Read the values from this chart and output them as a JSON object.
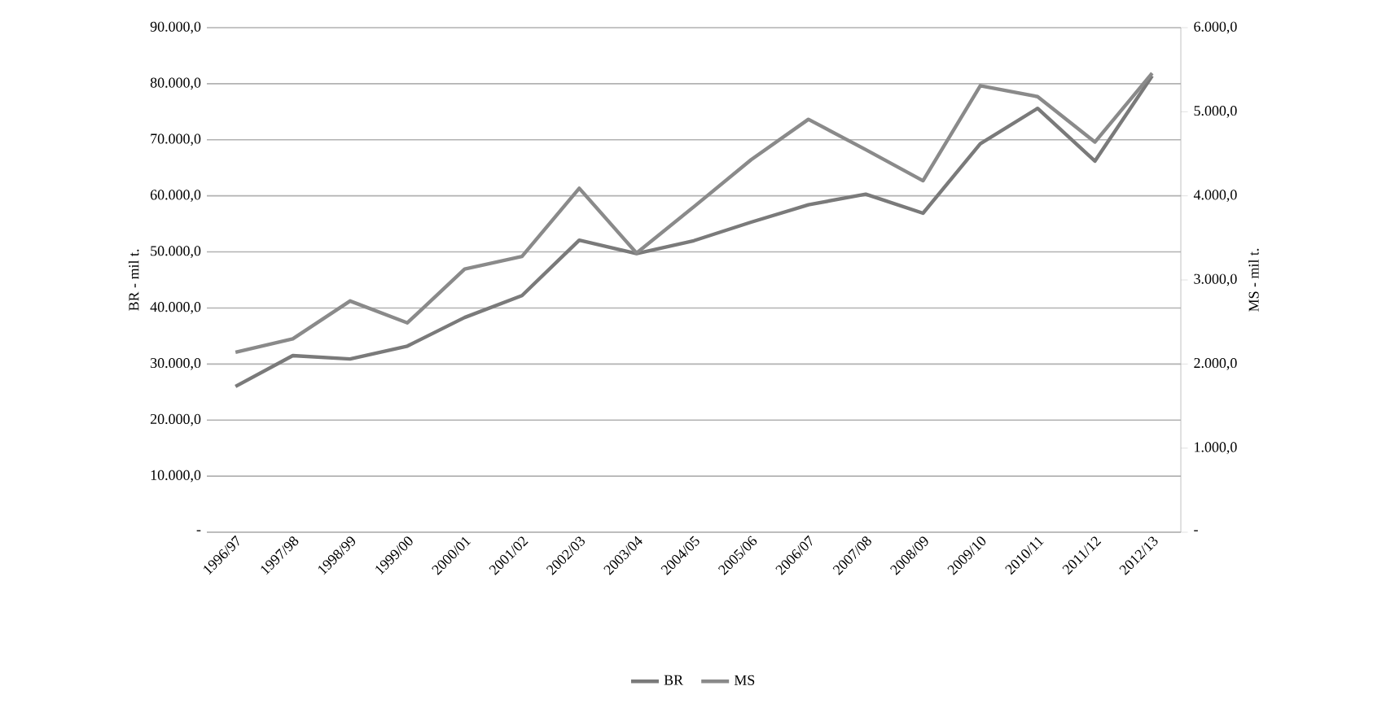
{
  "chart_data": {
    "type": "line",
    "categories": [
      "1996/97",
      "1997/98",
      "1998/99",
      "1999/00",
      "2000/01",
      "2001/02",
      "2002/03",
      "2003/04",
      "2004/05",
      "2005/06",
      "2006/07",
      "2007/08",
      "2008/09",
      "2009/10",
      "2010/11",
      "2011/12",
      "2012/13"
    ],
    "series": [
      {
        "name": "BR",
        "color": "#7a7a7a",
        "values": [
          26000,
          31500,
          30900,
          33200,
          38300,
          42200,
          52100,
          49700,
          52000,
          55300,
          58400,
          60300,
          56900,
          69300,
          75600,
          66200,
          81400
        ]
      },
      {
        "name": "MS",
        "color": "#8a8a8a",
        "axis": "y2",
        "values": [
          2140,
          2300,
          2750,
          2490,
          3130,
          3280,
          4090,
          3320,
          3870,
          4430,
          4910,
          4550,
          4180,
          5310,
          5180,
          4640,
          5460
        ]
      }
    ],
    "ylabel": "BR - mil t.",
    "y2label": "MS - mil t.",
    "ylim": [
      0,
      90000
    ],
    "yticks": [
      {
        "value": 0,
        "label": "-"
      },
      {
        "value": 10000,
        "label": "10.000,0"
      },
      {
        "value": 20000,
        "label": "20.000,0"
      },
      {
        "value": 30000,
        "label": "30.000,0"
      },
      {
        "value": 40000,
        "label": "40.000,0"
      },
      {
        "value": 50000,
        "label": "50.000,0"
      },
      {
        "value": 60000,
        "label": "60.000,0"
      },
      {
        "value": 70000,
        "label": "70.000,0"
      },
      {
        "value": 80000,
        "label": "80.000,0"
      },
      {
        "value": 90000,
        "label": "90.000,0"
      }
    ],
    "y2lim": [
      0,
      6000
    ],
    "y2ticks": [
      {
        "value": 0,
        "label": "-"
      },
      {
        "value": 1000,
        "label": "1.000,0"
      },
      {
        "value": 2000,
        "label": "2.000,0"
      },
      {
        "value": 3000,
        "label": "3.000,0"
      },
      {
        "value": 4000,
        "label": "4.000,0"
      },
      {
        "value": 5000,
        "label": "5.000,0"
      },
      {
        "value": 6000,
        "label": "6.000,0"
      }
    ],
    "grid": "y",
    "legend": "bottom"
  }
}
